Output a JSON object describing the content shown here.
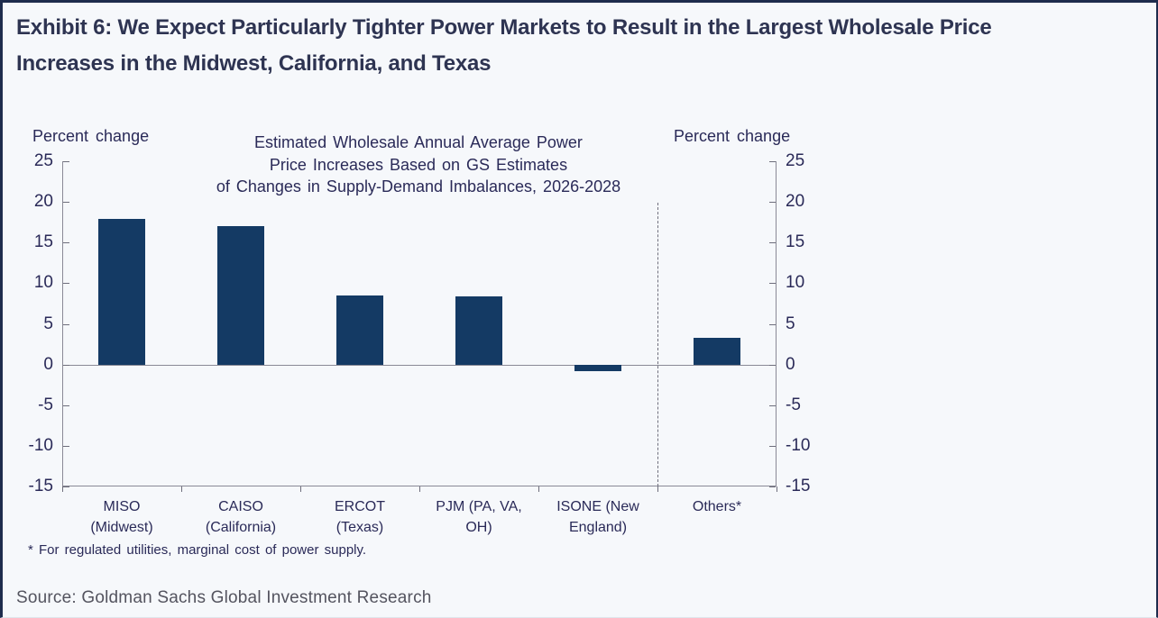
{
  "header": {
    "title": "Exhibit 6: We Expect Particularly Tighter Power Markets to Result in the Largest Wholesale Price\nIncreases in the Midwest, California, and Texas"
  },
  "chart_data": {
    "type": "bar",
    "title": "Estimated Wholesale Annual Average Power\nPrice Increases Based on GS Estimates\nof Changes in Supply-Demand Imbalances, 2026-2028",
    "left_axis_title": "Percent change",
    "right_axis_title": "Percent change",
    "categories": [
      "MISO\n(Midwest)",
      "CAISO\n(California)",
      "ERCOT\n(Texas)",
      "PJM (PA, VA,\nOH)",
      "ISONE (New\nEngland)",
      "Others*"
    ],
    "category_slugs": [
      "miso",
      "caiso",
      "ercot",
      "pjm",
      "isone",
      "others"
    ],
    "values": [
      17.9,
      17.0,
      8.5,
      8.4,
      -0.8,
      3.3
    ],
    "ylim": [
      -15,
      25
    ],
    "yticks": [
      25,
      20,
      15,
      10,
      5,
      0,
      -5,
      -10,
      -15
    ],
    "separator_before_category": "Others*",
    "separator_boundary_index": 5,
    "grid": "off",
    "legend": "none",
    "footnote": "* For regulated utilities,  marginal cost of power supply."
  },
  "footer": {
    "source": "Source: Goldman Sachs Global Investment Research"
  },
  "colors": {
    "bar": "#143a64",
    "chart_text": "#2a2a58",
    "axis_line": "#8a8a96",
    "title_text": "#2e3452",
    "source_text": "#54545f",
    "background": "#f6f8fb",
    "frame_border": "#1e2c4d"
  }
}
